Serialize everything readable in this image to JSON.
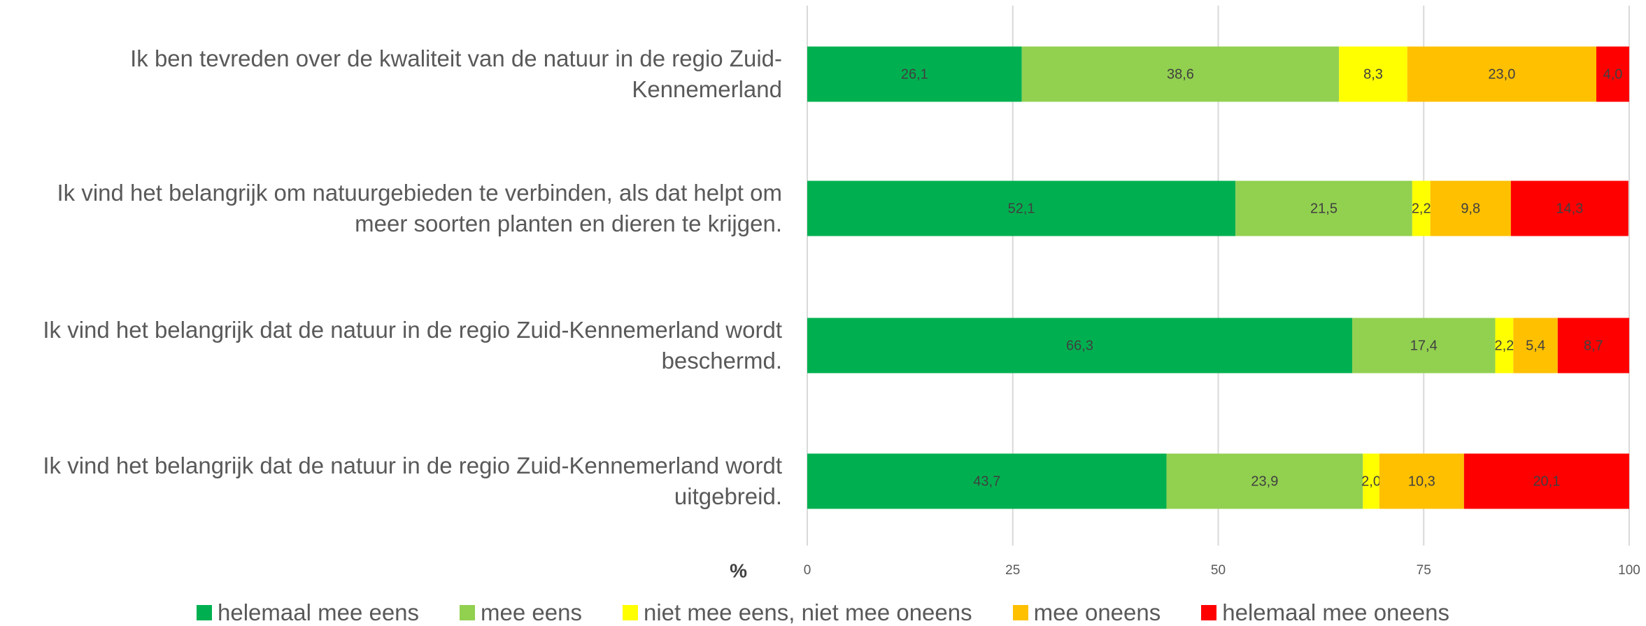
{
  "chart_data": {
    "type": "stacked-barh",
    "categories": [
      "Ik ben tevreden over de kwaliteit van de natuur in de regio Zuid-Kennemerland",
      "Ik vind het belangrijk om natuurgebieden te verbinden, als dat helpt om meer soorten planten en dieren te krijgen.",
      "Ik vind het belangrijk dat de natuur in de regio Zuid-Kennemerland wordt beschermd.",
      "Ik vind het belangrijk dat de natuur in de regio Zuid-Kennemerland wordt uitgebreid."
    ],
    "series": [
      {
        "name": "helemaal mee eens",
        "color": "#00b050",
        "values": [
          26.1,
          52.1,
          66.3,
          43.7
        ],
        "value_labels": [
          "26,1",
          "52,1",
          "66,3",
          "43,7"
        ]
      },
      {
        "name": "mee eens",
        "color": "#92d050",
        "values": [
          38.6,
          21.5,
          17.4,
          23.9
        ],
        "value_labels": [
          "38,6",
          "21,5",
          "17,4",
          "23,9"
        ]
      },
      {
        "name": "niet mee eens, niet mee oneens",
        "color": "#ffff00",
        "values": [
          8.3,
          2.2,
          2.2,
          2.0
        ],
        "value_labels": [
          "8,3",
          "2,2",
          "2,2",
          "2,0"
        ]
      },
      {
        "name": "mee oneens",
        "color": "#ffc000",
        "values": [
          23.0,
          9.8,
          5.4,
          10.3
        ],
        "value_labels": [
          "23,0",
          "9,8",
          "5,4",
          "10,3"
        ]
      },
      {
        "name": "helemaal mee oneens",
        "color": "#ff0000",
        "values": [
          4.0,
          14.3,
          8.7,
          20.1
        ],
        "value_labels": [
          "4,0",
          "14,3",
          "8,7",
          "20,1"
        ]
      }
    ],
    "x_label": "%",
    "xlim": [
      0,
      100
    ],
    "xticks": [
      0,
      25,
      50,
      75,
      100
    ],
    "grid": true,
    "legend": "bottom"
  }
}
